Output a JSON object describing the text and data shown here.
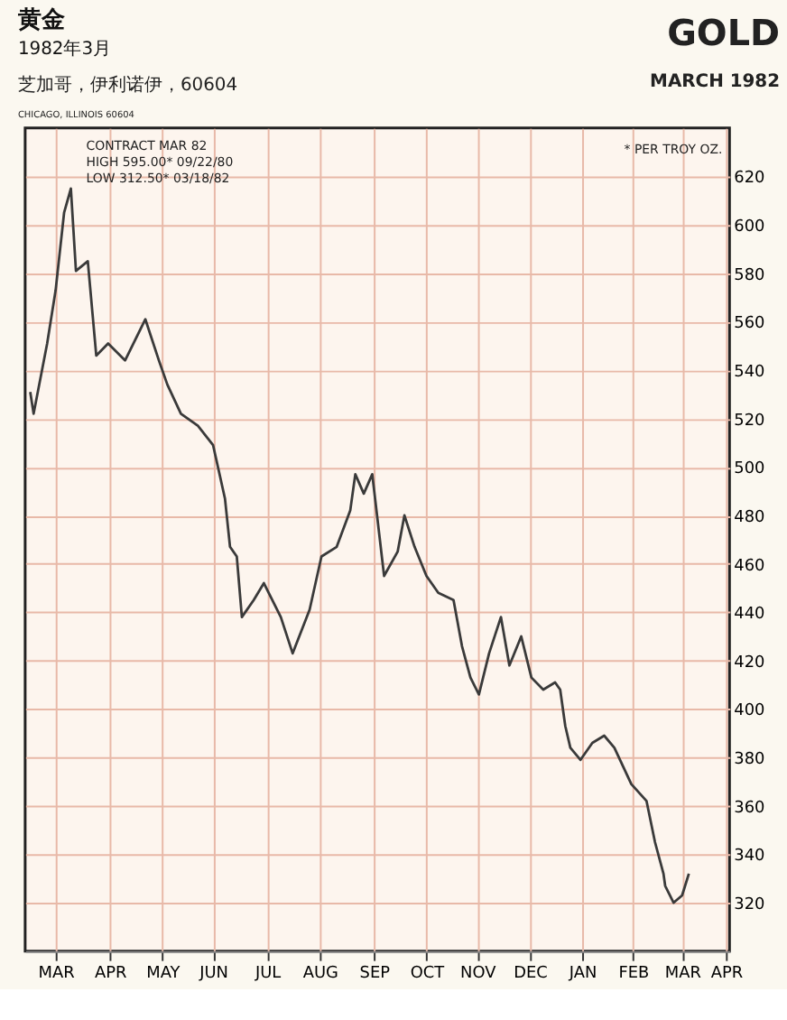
{
  "chart_data": {
    "type": "line",
    "title": "黄金",
    "subtitle": "1982年3月",
    "annotations": [
      "芝加哥，伊利诺伊，60604",
      "GOLD",
      "MARCH 1982",
      "CHICAGO, ILLINOIS 60604",
      "CONTRACT MAR 82",
      "HIGH    595.00* 09/22/80",
      "LOW     312.50* 03/18/82",
      "* PER TROY OZ."
    ],
    "x": [
      "1981-03-03",
      "1981-03-05",
      "1981-03-13",
      "1981-03-18",
      "1981-03-23",
      "1981-03-27",
      "1981-03-30",
      "1981-04-06",
      "1981-04-11",
      "1981-04-18",
      "1981-04-28",
      "1981-05-10",
      "1981-05-18",
      "1981-05-23",
      "1981-05-31",
      "1981-06-10",
      "1981-06-19",
      "1981-06-26",
      "1981-06-29",
      "1981-07-03",
      "1981-07-06",
      "1981-07-13",
      "1981-07-19",
      "1981-07-29",
      "1981-08-05",
      "1981-08-15",
      "1981-08-22",
      "1981-08-31",
      "1981-09-08",
      "1981-09-11",
      "1981-09-16",
      "1981-09-21",
      "1981-09-28",
      "1981-10-06",
      "1981-10-10",
      "1981-10-16",
      "1981-10-23",
      "1981-10-30",
      "1981-11-08",
      "1981-11-13",
      "1981-11-18",
      "1981-11-23",
      "1981-11-29",
      "1981-12-06",
      "1981-12-11",
      "1981-12-18",
      "1981-12-24",
      "1981-12-31",
      "1982-01-07",
      "1982-01-10",
      "1982-01-13",
      "1982-01-16",
      "1982-01-22",
      "1982-01-29",
      "1982-02-05",
      "1982-02-11",
      "1982-02-21",
      "1982-03-02",
      "1982-03-07",
      "1982-03-12",
      "1982-03-13",
      "1982-03-18",
      "1982-03-23",
      "1982-03-27"
    ],
    "series": [
      {
        "color": "#3a3a3a",
        "values": [
          531,
          522,
          551,
          573,
          605,
          615,
          581,
          585,
          546,
          551,
          544,
          561,
          544,
          534,
          522,
          517,
          509,
          487,
          467,
          463,
          438,
          445,
          452,
          438,
          423,
          441,
          463,
          467,
          482,
          497,
          489,
          497,
          455,
          465,
          480,
          467,
          455,
          448,
          445,
          426,
          413,
          406,
          423,
          438,
          418,
          430,
          413,
          408,
          411,
          408,
          393,
          384,
          379,
          386,
          389,
          384,
          369,
          362,
          345,
          332,
          327,
          320,
          323,
          332
        ]
      }
    ],
    "xlim": [
      "1981-02-28",
      "1982-04-20"
    ],
    "xticks": [
      {
        "value": "1981-03-18",
        "label": "MAR"
      },
      {
        "value": "1981-04-19",
        "label": "APR"
      },
      {
        "value": "1981-05-20",
        "label": "MAY"
      },
      {
        "value": "1981-06-19",
        "label": "JUN"
      },
      {
        "value": "1981-07-21",
        "label": "JUL"
      },
      {
        "value": "1981-08-21",
        "label": "AUG"
      },
      {
        "value": "1981-09-22",
        "label": "SEP"
      },
      {
        "value": "1981-10-23",
        "label": "OCT"
      },
      {
        "value": "1981-11-22",
        "label": "NOV"
      },
      {
        "value": "1981-12-23",
        "label": "DEC"
      },
      {
        "value": "1982-01-23",
        "label": "JAN"
      },
      {
        "value": "1982-02-22",
        "label": "FEB"
      },
      {
        "value": "1982-03-23",
        "label": "MAR"
      },
      {
        "value": "1982-04-18",
        "label": "APR"
      }
    ],
    "ylim": [
      300,
      640
    ],
    "yticks": [
      320,
      340,
      360,
      380,
      400,
      420,
      440,
      460,
      480,
      500,
      520,
      540,
      560,
      580,
      600,
      620
    ],
    "grid": true,
    "marker": "none",
    "line_style": "solid"
  }
}
